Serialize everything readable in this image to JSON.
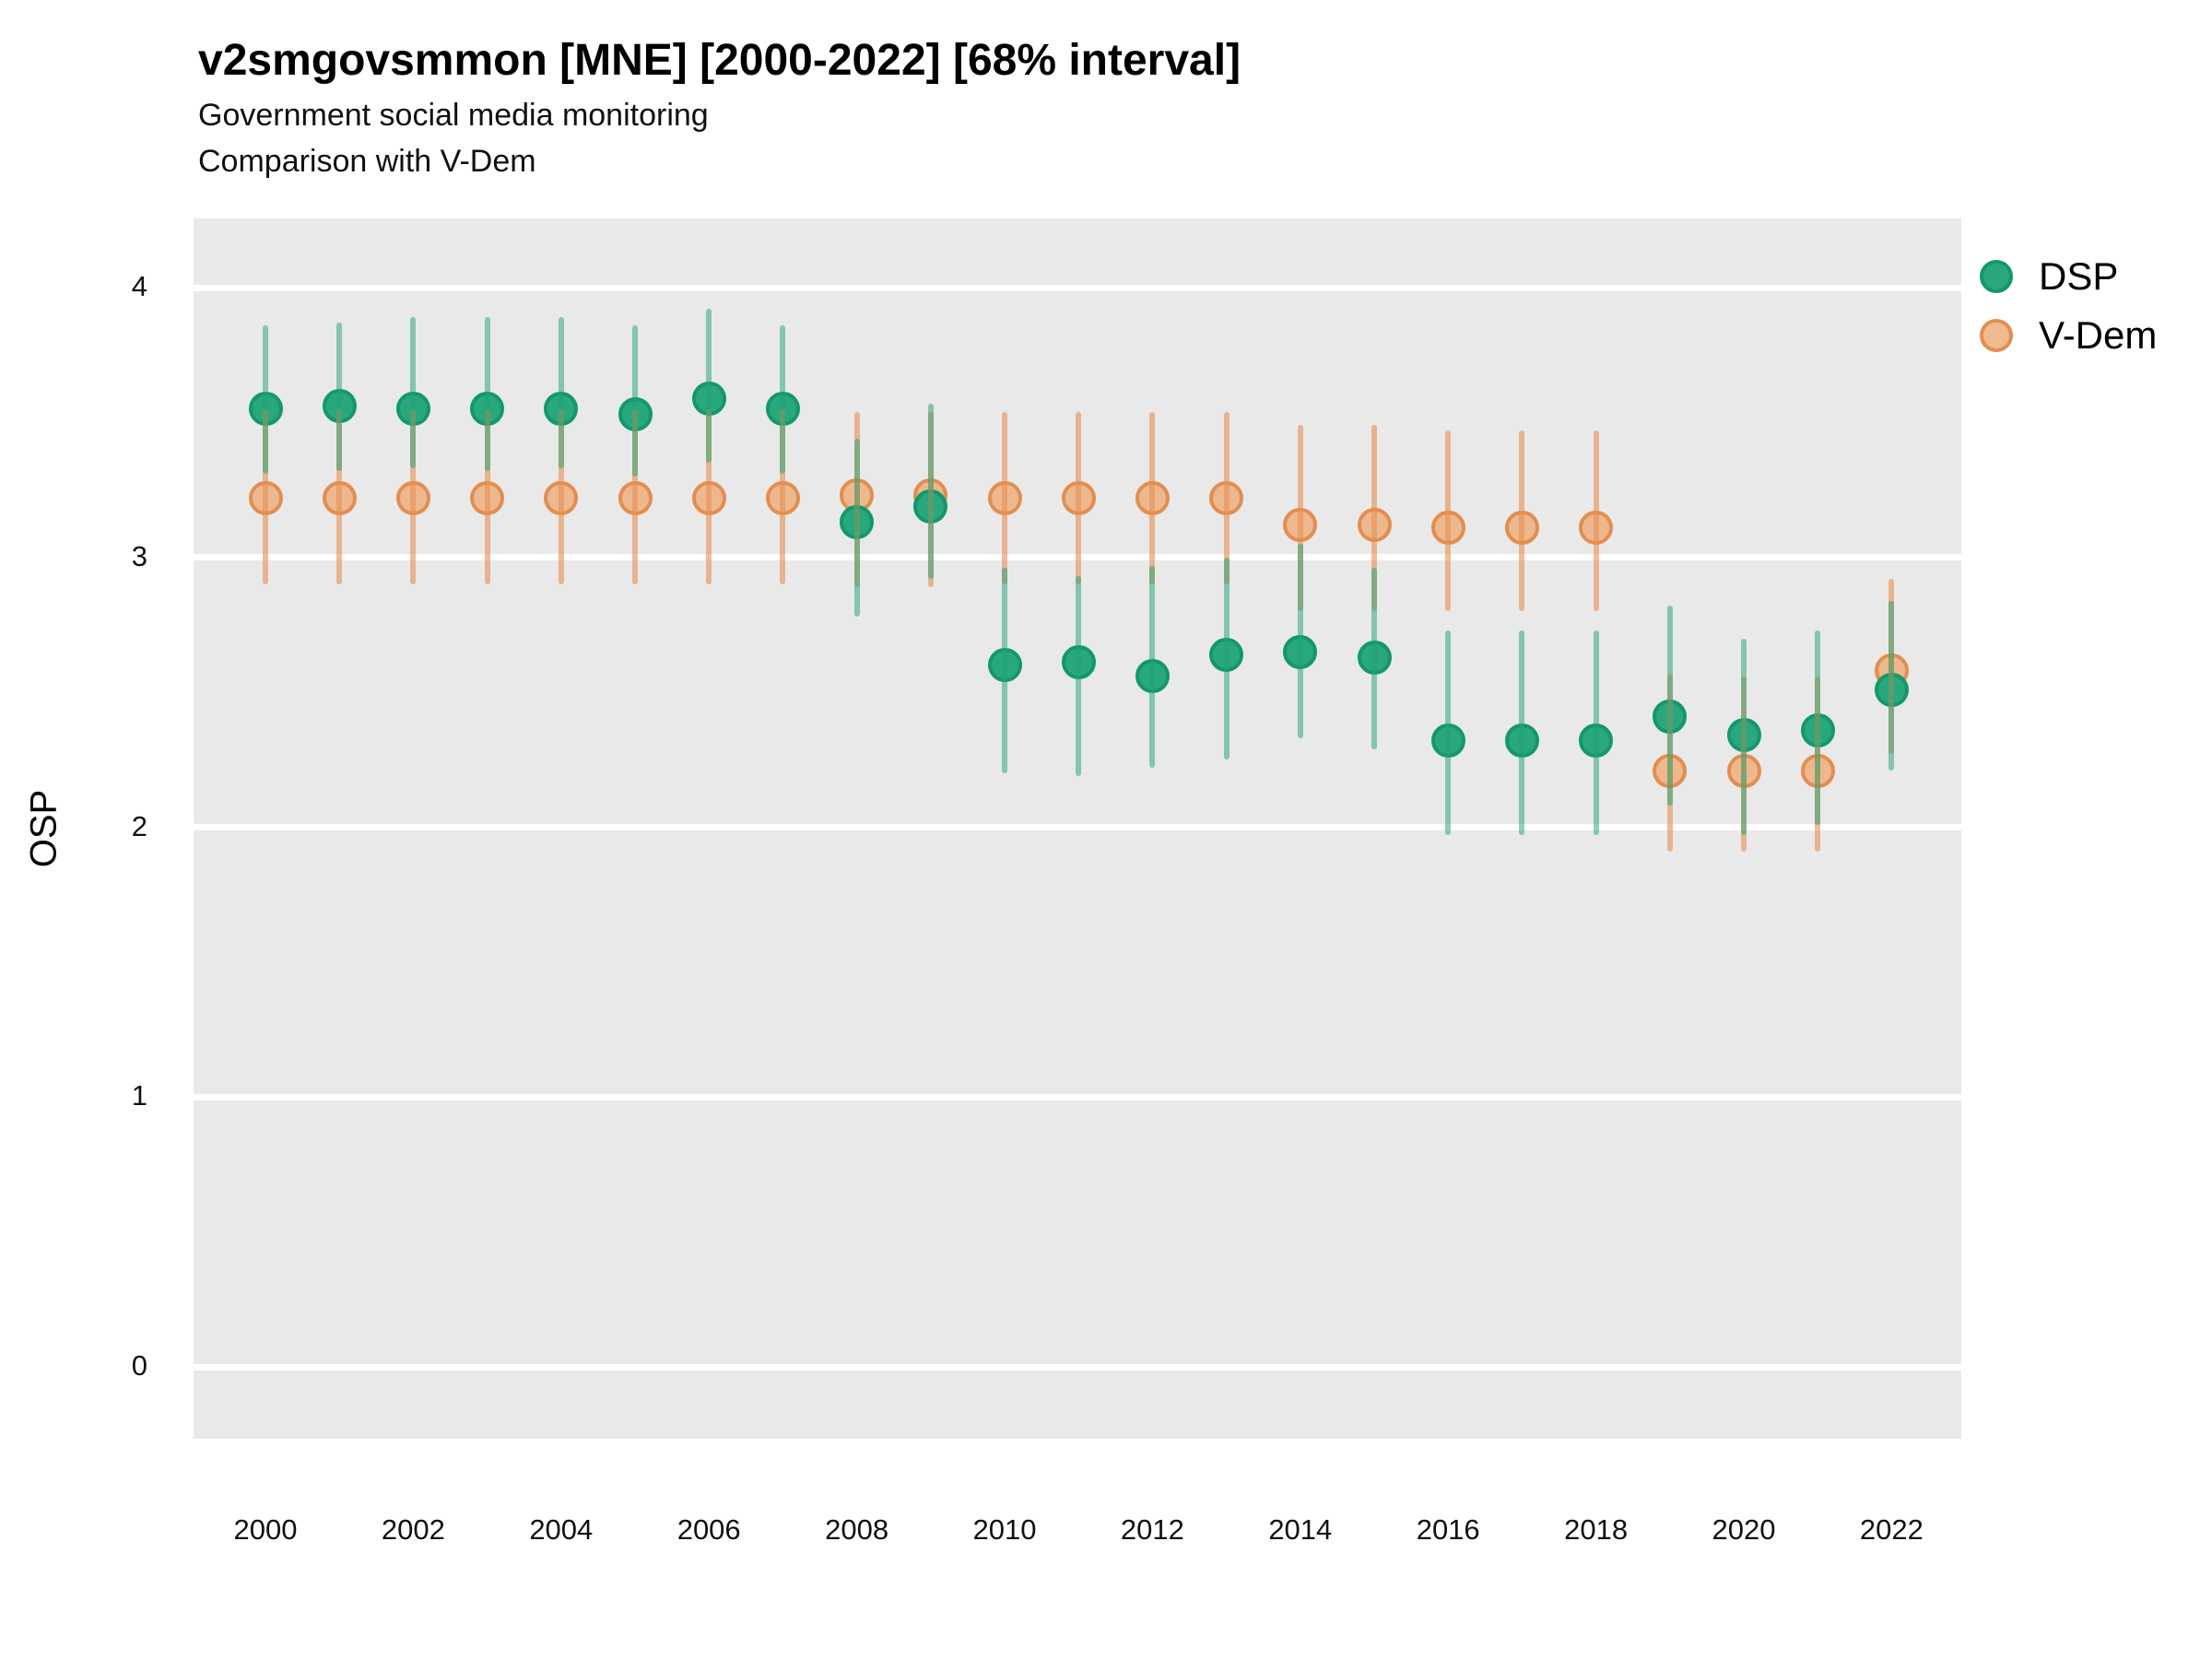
{
  "title": "v2smgovsmmon [MNE] [2000-2022] [68% interval]",
  "subtitle1": "Government social media monitoring",
  "subtitle2": "Comparison with V-Dem",
  "y_axis_label": "OSP",
  "legend": {
    "items": [
      {
        "label": "DSP"
      },
      {
        "label": "V-Dem"
      }
    ]
  },
  "colors": {
    "panel_bg": "#e9e9e9",
    "gridline": "#ffffff",
    "dsp_point_fill": "#29a87e",
    "dsp_point_border": "#13986b",
    "dsp_bar": "rgba(30,161,115,0.50)",
    "vdem_point_fill": "rgba(238,176,130,0.88)",
    "vdem_point_border": "#e28e51",
    "vdem_bar": "rgba(230,144,82,0.60)"
  },
  "chart_data": {
    "type": "pointrange",
    "title": "v2smgovsmmon [MNE] [2000-2022] [68% interval]",
    "subtitle": [
      "Government social media monitoring",
      "Comparison with V-Dem"
    ],
    "interval": "68%",
    "xlabel": "",
    "ylabel": "OSP",
    "ylim": [
      -0.27,
      4.26
    ],
    "xlim": [
      1999.0,
      2022.95
    ],
    "yticks": [
      4,
      3,
      2,
      1,
      0
    ],
    "xticks": [
      2000,
      2002,
      2004,
      2006,
      2008,
      2010,
      2012,
      2014,
      2016,
      2018,
      2020,
      2022
    ],
    "grid": "white-on-grey",
    "legend_position": "right-top",
    "x": [
      2000,
      2001,
      2002,
      2003,
      2004,
      2005,
      2006,
      2007,
      2008,
      2009,
      2010,
      2011,
      2012,
      2013,
      2014,
      2015,
      2016,
      2017,
      2018,
      2019,
      2020,
      2021,
      2022
    ],
    "series": [
      {
        "name": "DSP",
        "center": [
          3.55,
          3.56,
          3.55,
          3.55,
          3.55,
          3.53,
          3.59,
          3.55,
          3.13,
          3.19,
          2.6,
          2.61,
          2.56,
          2.64,
          2.65,
          2.63,
          2.32,
          2.32,
          2.32,
          2.41,
          2.34,
          2.36,
          2.51
        ],
        "lower": [
          3.31,
          3.32,
          3.33,
          3.32,
          3.33,
          3.3,
          3.35,
          3.31,
          2.78,
          2.92,
          2.2,
          2.19,
          2.22,
          2.25,
          2.33,
          2.29,
          1.97,
          1.97,
          1.97,
          2.08,
          1.97,
          2.01,
          2.21
        ],
        "upper": [
          3.86,
          3.87,
          3.89,
          3.89,
          3.89,
          3.86,
          3.92,
          3.86,
          3.44,
          3.57,
          2.96,
          2.93,
          2.97,
          3.0,
          3.05,
          2.96,
          2.73,
          2.73,
          2.73,
          2.82,
          2.7,
          2.73,
          2.84
        ]
      },
      {
        "name": "V-Dem",
        "center": [
          3.22,
          3.22,
          3.22,
          3.22,
          3.22,
          3.22,
          3.22,
          3.22,
          3.23,
          3.23,
          3.22,
          3.22,
          3.22,
          3.22,
          3.12,
          3.12,
          3.11,
          3.11,
          3.11,
          2.21,
          2.21,
          2.21,
          2.58
        ],
        "lower": [
          2.9,
          2.9,
          2.9,
          2.9,
          2.9,
          2.9,
          2.9,
          2.9,
          2.89,
          2.89,
          2.9,
          2.9,
          2.9,
          2.9,
          2.8,
          2.8,
          2.8,
          2.8,
          2.8,
          1.91,
          1.91,
          1.91,
          2.27
        ],
        "upper": [
          3.55,
          3.55,
          3.55,
          3.55,
          3.55,
          3.55,
          3.55,
          3.55,
          3.54,
          3.54,
          3.54,
          3.54,
          3.54,
          3.54,
          3.49,
          3.49,
          3.47,
          3.47,
          3.47,
          2.57,
          2.56,
          2.56,
          2.92
        ]
      }
    ]
  }
}
